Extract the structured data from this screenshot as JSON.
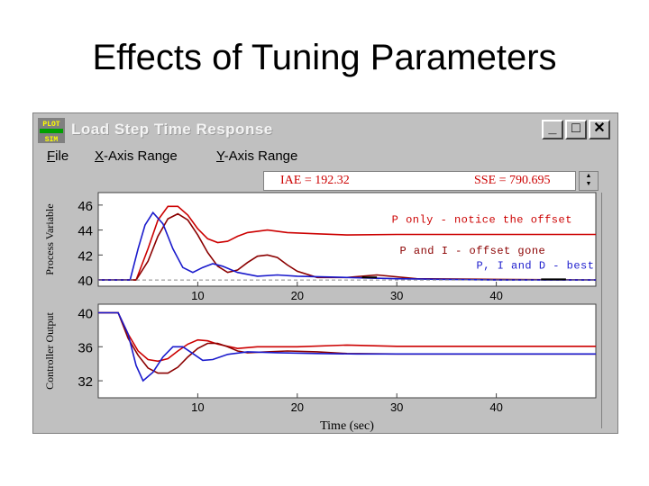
{
  "slide": {
    "title": "Effects of Tuning Parameters"
  },
  "window": {
    "app_icon_text": [
      "PLOT",
      "SIM"
    ],
    "title": "Load Step Time Response",
    "controls": {
      "minimize": "_",
      "maximize": "□",
      "close": "✕"
    }
  },
  "menu": {
    "file": {
      "hot": "F",
      "rest": "ile"
    },
    "x_axis": {
      "hot": "X",
      "rest": "-Axis Range"
    },
    "y_axis": {
      "hot": "Y",
      "rest": "-Axis Range"
    }
  },
  "metrics": {
    "iae": "IAE = 192.32",
    "sse": "SSE = 790.695"
  },
  "colors": {
    "p_only": "#cc0000",
    "p_and_i": "#8b0000",
    "pid": "#1a1acc",
    "setpoint": "#888888"
  },
  "chart_data": [
    {
      "type": "line",
      "title": "",
      "ylabel": "Process Variable",
      "xlabel": "",
      "xlim": [
        0,
        50
      ],
      "ylim": [
        39.5,
        47
      ],
      "xticks": [
        "10",
        "20",
        "30",
        "40"
      ],
      "yticks": [
        "46",
        "44",
        "42",
        "40"
      ],
      "annotations": {
        "p_only": "P only - notice the offset",
        "p_and_i": "P and I - offset gone",
        "pid": "P, I and D - best"
      },
      "series": [
        {
          "name": "P only",
          "x": [
            0,
            3.8,
            5,
            6,
            7,
            8,
            9,
            10,
            11,
            12,
            13,
            14,
            15,
            17,
            19,
            22,
            25,
            30,
            35,
            40,
            45,
            50
          ],
          "y": [
            40,
            40,
            42.5,
            44.8,
            45.9,
            45.9,
            45.2,
            44.1,
            43.3,
            43.0,
            43.1,
            43.5,
            43.8,
            44.0,
            43.8,
            43.7,
            43.6,
            43.65,
            43.65,
            43.65,
            43.65,
            43.65
          ]
        },
        {
          "name": "P and I",
          "x": [
            0,
            3.8,
            5,
            6,
            7,
            8,
            9,
            10,
            11,
            12,
            13,
            14,
            15,
            16,
            17,
            18,
            19,
            20,
            22,
            25,
            28,
            32,
            40,
            50
          ],
          "y": [
            40,
            40,
            41.5,
            43.5,
            44.9,
            45.3,
            44.8,
            43.6,
            42.2,
            41.1,
            40.6,
            40.8,
            41.4,
            41.9,
            42.0,
            41.8,
            41.2,
            40.7,
            40.2,
            40.2,
            40.4,
            40.1,
            40.05,
            40.0
          ]
        },
        {
          "name": "P, I and D",
          "x": [
            0,
            3.2,
            4,
            4.7,
            5.5,
            6.5,
            7.5,
            8.5,
            9.5,
            10.5,
            11.5,
            12.5,
            14,
            16,
            18,
            20,
            25,
            30,
            35,
            40,
            50
          ],
          "y": [
            40,
            40,
            42.5,
            44.4,
            45.4,
            44.5,
            42.5,
            41.0,
            40.6,
            41.0,
            41.3,
            41.1,
            40.6,
            40.3,
            40.4,
            40.3,
            40.2,
            40.1,
            40.05,
            40.0,
            40.0
          ]
        },
        {
          "name": "Setpoint",
          "x": [
            0,
            50
          ],
          "y": [
            40,
            40
          ]
        }
      ]
    },
    {
      "type": "line",
      "title": "",
      "ylabel": "Controller Output",
      "xlabel": "Time (sec)",
      "xlim": [
        0,
        50
      ],
      "ylim": [
        30,
        41
      ],
      "xticks": [
        "10",
        "20",
        "30",
        "40"
      ],
      "yticks": [
        "40",
        "36",
        "32"
      ],
      "series": [
        {
          "name": "P only",
          "x": [
            0,
            2,
            3,
            4,
            5,
            6,
            7,
            8,
            9,
            10,
            11,
            12,
            14,
            16,
            20,
            25,
            30,
            40,
            50
          ],
          "y": [
            40,
            40,
            37.5,
            35.5,
            34.5,
            34.3,
            34.6,
            35.5,
            36.3,
            36.8,
            36.7,
            36.3,
            35.8,
            36.0,
            36.0,
            36.2,
            36.05,
            36.05,
            36.05
          ]
        },
        {
          "name": "P and I",
          "x": [
            0,
            2,
            3,
            4,
            5,
            6,
            7,
            8,
            9,
            10,
            11,
            12,
            13,
            14,
            15,
            17,
            19,
            22,
            25,
            30,
            40,
            50
          ],
          "y": [
            40,
            40,
            37.0,
            35.0,
            33.5,
            32.9,
            32.9,
            33.6,
            34.8,
            35.8,
            36.4,
            36.4,
            36.0,
            35.5,
            35.3,
            35.4,
            35.5,
            35.4,
            35.2,
            35.15,
            35.15,
            35.15
          ]
        },
        {
          "name": "P, I and D",
          "x": [
            0,
            2,
            3,
            3.8,
            4.5,
            5.5,
            6.5,
            7.5,
            8.5,
            9.5,
            10.5,
            11.5,
            13,
            15,
            18,
            22,
            26,
            30,
            40,
            50
          ],
          "y": [
            40,
            40,
            37.5,
            33.8,
            32.0,
            33.0,
            34.8,
            36.0,
            36.0,
            35.2,
            34.4,
            34.5,
            35.1,
            35.4,
            35.3,
            35.2,
            35.15,
            35.15,
            35.15,
            35.15
          ]
        }
      ]
    }
  ]
}
